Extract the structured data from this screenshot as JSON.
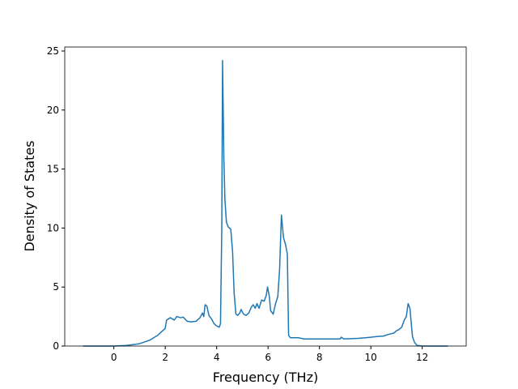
{
  "chart_data": {
    "type": "line",
    "xlabel": "Frequency (THz)",
    "ylabel": "Density of States",
    "x": [
      -1.2,
      0,
      0.5,
      1.0,
      1.4,
      1.7,
      1.9,
      2.0,
      2.05,
      2.2,
      2.35,
      2.45,
      2.6,
      2.7,
      2.85,
      3.0,
      3.2,
      3.35,
      3.45,
      3.5,
      3.55,
      3.62,
      3.7,
      3.8,
      3.9,
      4.0,
      4.1,
      4.15,
      4.2,
      4.23,
      4.28,
      4.32,
      4.38,
      4.45,
      4.55,
      4.62,
      4.68,
      4.75,
      4.82,
      4.9,
      4.95,
      5.05,
      5.15,
      5.25,
      5.35,
      5.42,
      5.5,
      5.57,
      5.65,
      5.75,
      5.85,
      5.93,
      5.98,
      6.05,
      6.1,
      6.2,
      6.28,
      6.38,
      6.45,
      6.52,
      6.6,
      6.68,
      6.75,
      6.8,
      6.87,
      7.0,
      7.2,
      7.4,
      8.0,
      8.5,
      8.8,
      8.85,
      8.95,
      9.5,
      9.8,
      10.0,
      10.2,
      10.5,
      10.7,
      10.9,
      11.0,
      11.1,
      11.2,
      11.3,
      11.38,
      11.45,
      11.52,
      11.57,
      11.62,
      11.7,
      11.8,
      12.0,
      13.0
    ],
    "series": [
      {
        "color": "#1f77b4",
        "values": [
          0,
          0,
          0.05,
          0.2,
          0.5,
          0.9,
          1.3,
          1.5,
          2.2,
          2.4,
          2.2,
          2.5,
          2.4,
          2.45,
          2.1,
          2.05,
          2.1,
          2.4,
          2.8,
          2.5,
          3.5,
          3.4,
          2.6,
          2.3,
          1.9,
          1.7,
          1.6,
          1.9,
          10,
          24.2,
          16,
          12.5,
          10.5,
          10.1,
          9.9,
          8,
          4.5,
          2.7,
          2.6,
          2.8,
          3.1,
          2.7,
          2.6,
          2.8,
          3.3,
          3.5,
          3.2,
          3.6,
          3.2,
          3.9,
          3.8,
          4.3,
          5.0,
          4.2,
          3.0,
          2.7,
          3.5,
          4.2,
          6.5,
          11.1,
          9.2,
          8.6,
          7.8,
          0.9,
          0.7,
          0.7,
          0.7,
          0.6,
          0.6,
          0.6,
          0.6,
          0.75,
          0.6,
          0.65,
          0.7,
          0.75,
          0.8,
          0.85,
          1.0,
          1.1,
          1.3,
          1.4,
          1.6,
          2.2,
          2.5,
          3.6,
          3.2,
          2.0,
          0.8,
          0.3,
          0.05,
          0,
          0
        ]
      }
    ],
    "xlim": [
      -1.91,
      13.71
    ],
    "ylim": [
      0,
      25.34
    ],
    "xticks": [
      0,
      2,
      4,
      6,
      8,
      10,
      12
    ],
    "yticks": [
      0,
      5,
      10,
      15,
      20,
      25
    ]
  }
}
